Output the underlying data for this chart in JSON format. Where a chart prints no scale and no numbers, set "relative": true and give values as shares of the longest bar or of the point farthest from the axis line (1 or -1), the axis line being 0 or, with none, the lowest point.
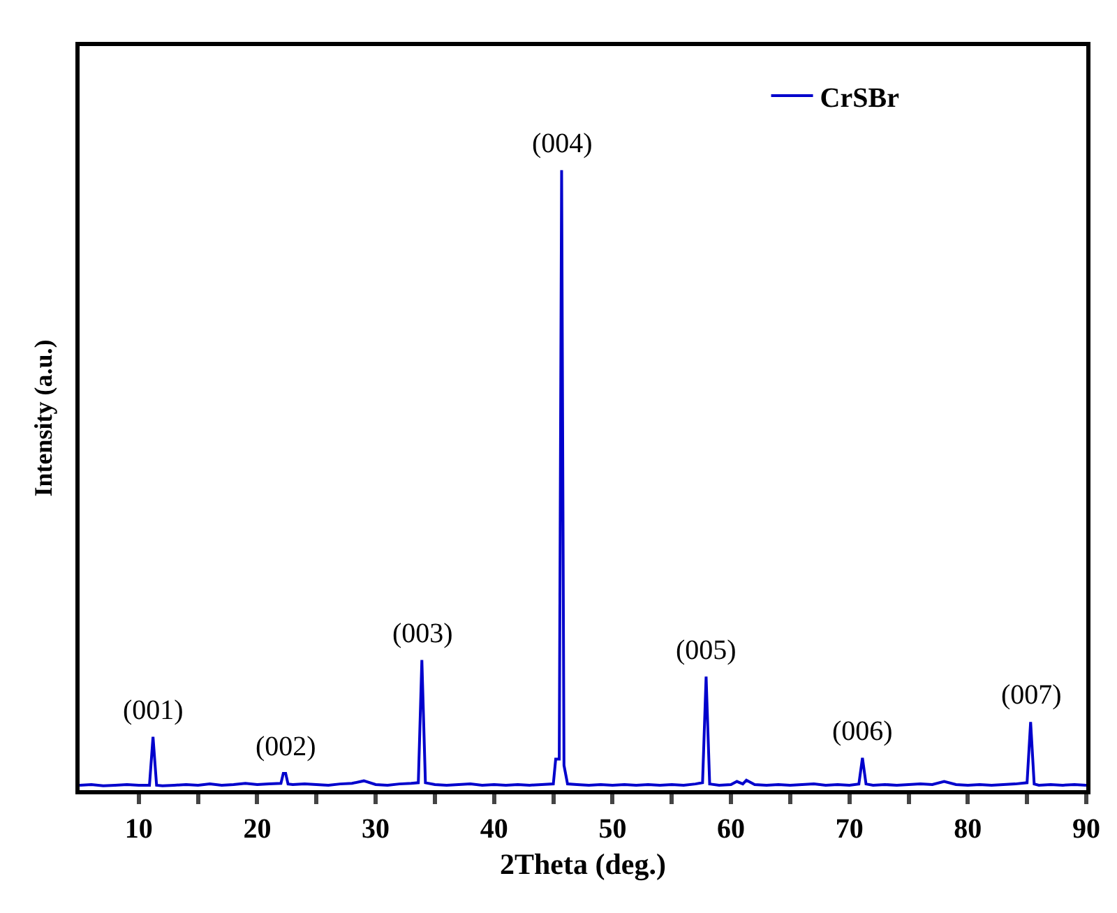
{
  "chart_data": {
    "type": "line",
    "relative": true,
    "xlabel": "2Theta (deg.)",
    "ylabel": "Intensity (a.u.)",
    "xlim": [
      5,
      90
    ],
    "xticks": [
      10,
      {
        "value": 15,
        "label": null
      },
      20,
      {
        "value": 25,
        "label": null
      },
      30,
      {
        "value": 35,
        "label": null
      },
      40,
      {
        "value": 45,
        "label": null
      },
      50,
      {
        "value": 55,
        "label": null
      },
      60,
      {
        "value": 65,
        "label": null
      },
      70,
      {
        "value": 75,
        "label": null
      },
      80,
      {
        "value": 85,
        "label": null
      },
      90
    ],
    "x": [
      5,
      6,
      7,
      8,
      9,
      10,
      10.9,
      11.2,
      11.5,
      12,
      13,
      14,
      15,
      16,
      17,
      18,
      19,
      20,
      21,
      22,
      22.2,
      22.4,
      22.6,
      23,
      24,
      25,
      26,
      27,
      28,
      29,
      30,
      31,
      32,
      33,
      33.6,
      33.9,
      34.2,
      35,
      36,
      37,
      38,
      39,
      40,
      41,
      42,
      43,
      44,
      45,
      45.2,
      45.5,
      45.7,
      45.9,
      46.2,
      47,
      48,
      49,
      50,
      51,
      52,
      53,
      54,
      55,
      56,
      57,
      57.6,
      57.9,
      58.2,
      59,
      60,
      60.5,
      61,
      61.3,
      62,
      63,
      64,
      65,
      66,
      67,
      68,
      69,
      70,
      70.8,
      71.1,
      71.4,
      72,
      73,
      74,
      75,
      76,
      77,
      78,
      79,
      80,
      81,
      82,
      83,
      84,
      85,
      85.3,
      85.6,
      86,
      87,
      88,
      89,
      90
    ],
    "series": [
      {
        "name": "CrSBr",
        "color": "#0000cc",
        "values": [
          0.008,
          0.009,
          0.007,
          0.008,
          0.009,
          0.008,
          0.008,
          0.086,
          0.008,
          0.007,
          0.008,
          0.009,
          0.008,
          0.01,
          0.008,
          0.009,
          0.011,
          0.009,
          0.01,
          0.011,
          0.027,
          0.027,
          0.01,
          0.009,
          0.01,
          0.009,
          0.008,
          0.01,
          0.011,
          0.015,
          0.009,
          0.008,
          0.01,
          0.011,
          0.012,
          0.21,
          0.012,
          0.009,
          0.008,
          0.009,
          0.01,
          0.008,
          0.009,
          0.008,
          0.009,
          0.008,
          0.009,
          0.01,
          0.05,
          0.05,
          1,
          0.04,
          0.01,
          0.009,
          0.008,
          0.009,
          0.008,
          0.009,
          0.008,
          0.009,
          0.008,
          0.009,
          0.008,
          0.01,
          0.012,
          0.183,
          0.01,
          0.008,
          0.009,
          0.014,
          0.01,
          0.016,
          0.009,
          0.008,
          0.009,
          0.008,
          0.009,
          0.01,
          0.008,
          0.009,
          0.008,
          0.01,
          0.052,
          0.01,
          0.008,
          0.009,
          0.008,
          0.009,
          0.01,
          0.009,
          0.014,
          0.009,
          0.008,
          0.009,
          0.008,
          0.009,
          0.01,
          0.012,
          0.11,
          0.01,
          0.008,
          0.009,
          0.008,
          0.009,
          0.008
        ]
      }
    ],
    "annotations": [
      {
        "text": "(001)",
        "x": 11.2,
        "y": 0.086
      },
      {
        "text": "(002)",
        "x": 22.4,
        "y": 0.027
      },
      {
        "text": "(003)",
        "x": 33.9,
        "y": 0.21
      },
      {
        "text": "(004)",
        "x": 45.7,
        "y": 1
      },
      {
        "text": "(005)",
        "x": 57.9,
        "y": 0.183
      },
      {
        "text": "(006)",
        "x": 71.1,
        "y": 0.052
      },
      {
        "text": "(007)",
        "x": 85.3,
        "y": 0.11
      }
    ],
    "legend": "top right",
    "grid": false,
    "marker": "none",
    "line_style": "solid"
  }
}
